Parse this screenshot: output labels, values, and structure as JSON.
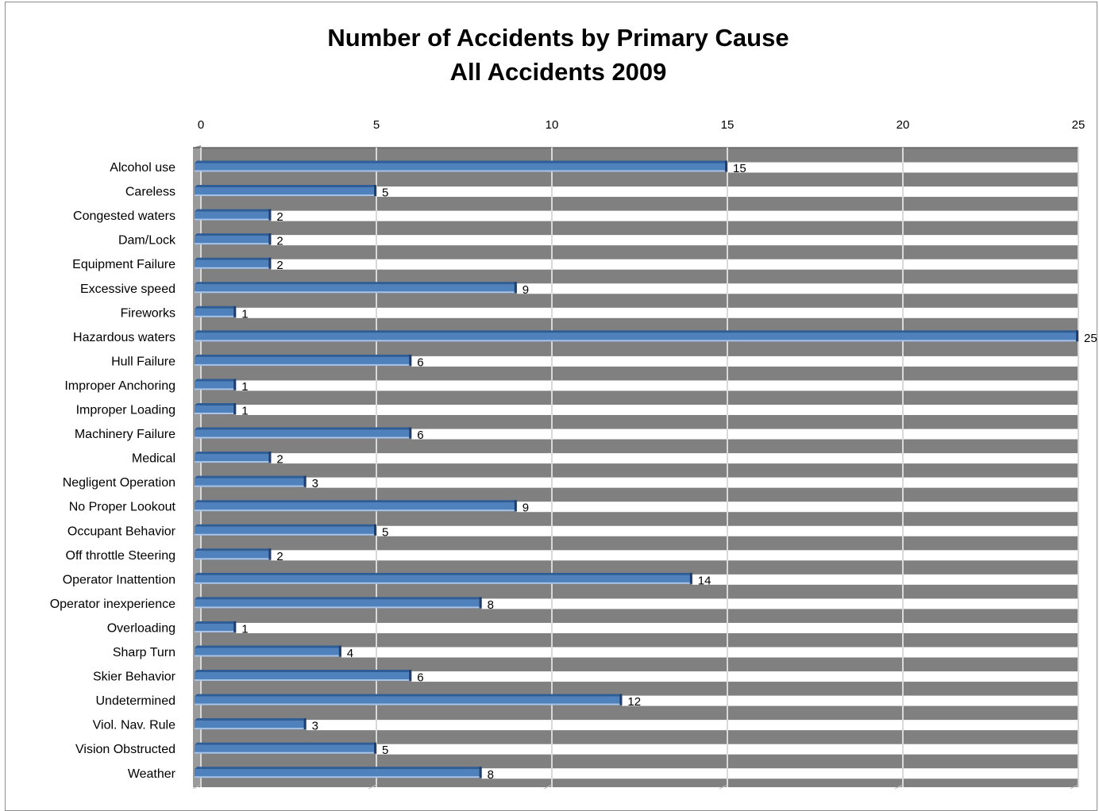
{
  "chart_data": {
    "type": "bar",
    "orientation": "horizontal",
    "title": "Number of Accidents by Primary Cause",
    "subtitle": "All Accidents 2009",
    "xlim": [
      0,
      25
    ],
    "xticks": [
      0,
      5,
      10,
      15,
      20,
      25
    ],
    "x_axis_position": "top",
    "grid": true,
    "legend": "none",
    "categories": [
      "Alcohol use",
      "Careless",
      "Congested waters",
      "Dam/Lock",
      "Equipment Failure",
      "Excessive speed",
      "Fireworks",
      "Hazardous waters",
      "Hull Failure",
      "Improper Anchoring",
      "Improper Loading",
      "Machinery Failure",
      "Medical",
      "Negligent Operation",
      "No Proper Lookout",
      "Occupant Behavior",
      "Off throttle Steering",
      "Operator Inattention",
      "Operator inexperience",
      "Overloading",
      "Sharp Turn",
      "Skier Behavior",
      "Undetermined",
      "Viol. Nav. Rule",
      "Vision Obstructed",
      "Weather"
    ],
    "values": [
      15,
      5,
      2,
      2,
      2,
      9,
      1,
      25,
      6,
      1,
      1,
      6,
      2,
      3,
      9,
      5,
      2,
      14,
      8,
      1,
      4,
      6,
      12,
      3,
      5,
      8
    ],
    "colors": {
      "bar": "#4f81bd",
      "bar_dark": "#2f5d96",
      "bar_light": "#a9c4e6",
      "plot_background": "#808080",
      "gridline": "#d9d9d9"
    }
  }
}
